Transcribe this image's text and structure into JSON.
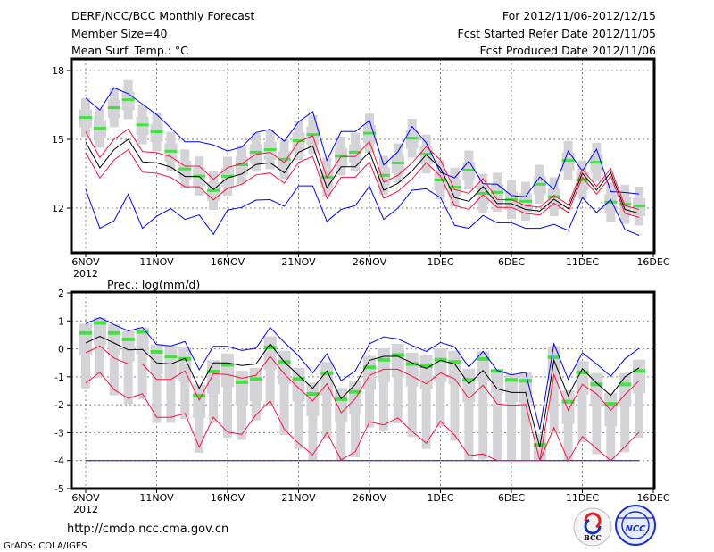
{
  "header": {
    "title": "DERF/NCC/BCC Monthly Forecast",
    "member_size": "Member Size=40",
    "variable": "Mean Surf. Temp.: °C",
    "period": "For 2012/11/06-2012/12/15",
    "started": "Fcst Started Refer Date 2012/11/05",
    "produced": "Fcst Produced Date 2012/11/06"
  },
  "footer": {
    "url": "http://cmdp.ncc.cma.gov.cn",
    "credit": "GrADS: COLA/IGES",
    "logo_bcc": "BCC",
    "logo_ncc": "NCC"
  },
  "colors": {
    "max_min": "#0000ff",
    "spread": "#ff1040",
    "mean": "#000000",
    "median": "#44e044",
    "box": "#d4d4d8",
    "grid": "#808080"
  },
  "chart_data": [
    {
      "type": "line",
      "title": "Mean Surf. Temp.: °C",
      "xlabel": "",
      "ylabel": "",
      "x_start_label": "6NOV",
      "year_label": "2012",
      "x_ticks": [
        {
          "day": 0,
          "label": "6NOV"
        },
        {
          "day": 5,
          "label": "11NOV"
        },
        {
          "day": 10,
          "label": "16NOV"
        },
        {
          "day": 15,
          "label": "21NOV"
        },
        {
          "day": 20,
          "label": "26NOV"
        },
        {
          "day": 25,
          "label": "1DEC"
        },
        {
          "day": 30,
          "label": "6DEC"
        },
        {
          "day": 35,
          "label": "11DEC"
        },
        {
          "day": 40,
          "label": "16DEC"
        }
      ],
      "y_ticks": [
        {
          "value": 18,
          "label": "18"
        },
        {
          "value": 15,
          "label": "15"
        },
        {
          "value": 12,
          "label": "12"
        }
      ],
      "ylim": [
        10.05,
        18.5
      ],
      "grid": true,
      "series": [
        {
          "name": "ensemble max",
          "color": "#0000ff",
          "values": [
            16.8,
            16.28,
            17.25,
            16.99,
            16.54,
            16.08,
            15.5,
            14.89,
            14.89,
            14.76,
            14.49,
            14.66,
            15.3,
            15.44,
            14.92,
            15.76,
            16.21,
            14.08,
            15.34,
            15.34,
            15.82,
            13.88,
            14.46,
            15.56,
            14.85,
            13.56,
            13.32,
            14.05,
            13.06,
            13.04,
            12.55,
            12.5,
            13.36,
            12.82,
            14.49,
            13.62,
            14.57,
            12.72,
            12.68,
            12.62
          ]
        },
        {
          "name": "ensemble min",
          "color": "#0000ff",
          "values": [
            12.82,
            11.12,
            11.45,
            12.61,
            11.12,
            11.64,
            11.98,
            11.51,
            11.7,
            10.86,
            11.92,
            12.03,
            12.35,
            12.37,
            12.08,
            12.97,
            12.97,
            11.42,
            11.94,
            12.11,
            12.95,
            11.51,
            12.0,
            12.78,
            12.84,
            12.46,
            11.25,
            11.12,
            11.68,
            11.36,
            11.36,
            11.12,
            11.12,
            11.29,
            11.03,
            12.46,
            11.81,
            12.37,
            11.07,
            10.81
          ]
        },
        {
          "name": "upper spread",
          "color": "#ff1040",
          "values": [
            15.33,
            14.21,
            15.0,
            15.45,
            14.47,
            14.42,
            14.24,
            13.83,
            13.83,
            13.26,
            13.77,
            13.94,
            14.35,
            14.43,
            13.99,
            14.89,
            15.16,
            13.33,
            14.25,
            14.25,
            14.91,
            13.13,
            13.43,
            13.97,
            14.68,
            14.1,
            12.81,
            12.65,
            13.29,
            12.37,
            12.37,
            12.11,
            12.04,
            12.56,
            12.15,
            13.69,
            12.95,
            13.73,
            12.11,
            11.94
          ]
        },
        {
          "name": "lower spread",
          "color": "#ff1040",
          "values": [
            14.43,
            13.31,
            14.1,
            14.55,
            13.57,
            13.52,
            13.34,
            12.93,
            12.93,
            12.36,
            12.87,
            13.04,
            13.45,
            13.53,
            13.09,
            13.99,
            14.26,
            12.43,
            13.35,
            13.35,
            14.01,
            12.43,
            12.73,
            13.27,
            13.98,
            13.4,
            12.11,
            11.95,
            12.59,
            12.03,
            12.03,
            11.77,
            11.7,
            12.22,
            11.81,
            13.35,
            12.61,
            13.39,
            11.77,
            11.6
          ]
        },
        {
          "name": "ensemble mean",
          "color": "#000000",
          "values": [
            14.88,
            13.76,
            14.55,
            15.0,
            14.02,
            13.97,
            13.79,
            13.38,
            13.38,
            12.81,
            13.32,
            13.49,
            13.9,
            13.98,
            13.54,
            14.44,
            14.71,
            12.88,
            13.8,
            13.8,
            14.46,
            12.78,
            13.08,
            13.62,
            14.33,
            13.75,
            12.46,
            12.3,
            12.94,
            12.2,
            12.2,
            11.94,
            11.87,
            12.39,
            11.98,
            13.52,
            12.78,
            13.56,
            11.94,
            11.77
          ]
        }
      ],
      "markers": {
        "name": "median",
        "color": "#44e044",
        "values": [
          15.95,
          15.49,
          16.38,
          16.73,
          15.63,
          15.33,
          14.48,
          13.71,
          13.4,
          12.77,
          13.39,
          13.89,
          14.44,
          14.55,
          14.13,
          14.94,
          15.21,
          13.35,
          14.27,
          14.44,
          15.27,
          13.43,
          13.97,
          15.05,
          14.36,
          13.23,
          12.91,
          13.66,
          12.65,
          12.69,
          12.37,
          12.3,
          13.04,
          12.5,
          14.08,
          13.23,
          14.0,
          12.26,
          12.17,
          12.09
        ]
      }
    },
    {
      "type": "line",
      "title": "Prec.: log(mm/d)",
      "xlabel": "",
      "ylabel": "",
      "year_label": "2012",
      "x_ticks": [
        {
          "day": 0,
          "label": "6NOV"
        },
        {
          "day": 5,
          "label": "11NOV"
        },
        {
          "day": 10,
          "label": "16NOV"
        },
        {
          "day": 15,
          "label": "21NOV"
        },
        {
          "day": 20,
          "label": "26NOV"
        },
        {
          "day": 25,
          "label": "1DEC"
        },
        {
          "day": 30,
          "label": "6DEC"
        },
        {
          "day": 35,
          "label": "11DEC"
        },
        {
          "day": 40,
          "label": "16DEC"
        }
      ],
      "y_ticks": [
        {
          "value": 2,
          "label": "2"
        },
        {
          "value": 1,
          "label": "1"
        },
        {
          "value": 0,
          "label": "0"
        },
        {
          "value": -1,
          "label": "-1"
        },
        {
          "value": -2,
          "label": "-2"
        },
        {
          "value": -3,
          "label": "-3"
        },
        {
          "value": -4,
          "label": "-4"
        },
        {
          "value": -5,
          "label": "-5"
        }
      ],
      "ylim": [
        -5,
        2
      ],
      "grid": true,
      "series": [
        {
          "name": "ensemble max",
          "color": "#0000ff",
          "values": [
            0.9,
            1.12,
            0.87,
            0.64,
            0.77,
            0.16,
            0.1,
            0.26,
            -0.75,
            0.09,
            0.09,
            -0.06,
            0.02,
            0.77,
            0.23,
            -0.25,
            -0.86,
            -0.18,
            -1.14,
            -0.79,
            0.18,
            0.43,
            0.36,
            0.12,
            -0.09,
            0.23,
            0.07,
            -0.65,
            -0.09,
            -0.77,
            -0.93,
            -0.84,
            -2.88,
            0.18,
            -1.09,
            -0.14,
            -0.54,
            -0.98,
            -0.36,
            0.02
          ]
        },
        {
          "name": "ensemble min",
          "color": "#0000ff",
          "values": [
            -4,
            -4,
            -4,
            -4,
            -4,
            -4,
            -4,
            -4,
            -4,
            -4,
            -4,
            -4,
            -4,
            -4,
            -4,
            -4,
            -4,
            -4,
            -4,
            -4,
            -4,
            -4,
            -4,
            -4,
            -4,
            -4,
            -4,
            -4,
            -4,
            -4,
            -4,
            -4,
            -4,
            -4,
            -4,
            -4,
            -4,
            -4,
            -4,
            -4
          ]
        },
        {
          "name": "upper spread",
          "color": "#ff1040",
          "values": [
            -0.14,
            0.1,
            -0.33,
            -0.54,
            -0.54,
            -1.09,
            -1.09,
            -0.79,
            -1.83,
            -0.89,
            -0.92,
            -1.05,
            -0.95,
            -0.27,
            -0.9,
            -1.4,
            -1.86,
            -1.25,
            -2.29,
            -1.78,
            -0.95,
            -0.73,
            -0.73,
            -0.98,
            -1.25,
            -0.86,
            -1.07,
            -1.78,
            -1.3,
            -1.97,
            -2.02,
            -1.99,
            -4.0,
            -0.92,
            -2.2,
            -1.27,
            -1.61,
            -2.2,
            -1.64,
            -1.14
          ]
        },
        {
          "name": "lower spread",
          "color": "#ff1040",
          "values": [
            -1.22,
            -0.84,
            -1.46,
            -1.77,
            -1.61,
            -2.45,
            -2.45,
            -2.31,
            -3.52,
            -2.45,
            -2.98,
            -3.06,
            -2.36,
            -1.86,
            -2.88,
            -3.38,
            -3.79,
            -3.0,
            -3.97,
            -3.68,
            -2.61,
            -2.72,
            -2.47,
            -2.95,
            -3.38,
            -2.59,
            -3.09,
            -3.82,
            -3.76,
            -4,
            -4,
            -4,
            -4,
            -2.82,
            -4,
            -3.14,
            -3.57,
            -4,
            -3.5,
            -2.98
          ]
        },
        {
          "name": "ensemble mean",
          "color": "#000000",
          "values": [
            0.21,
            0.45,
            0.21,
            -0.04,
            -0.02,
            -0.5,
            -0.54,
            -0.34,
            -1.41,
            -0.5,
            -0.5,
            -0.6,
            -0.54,
            0.18,
            -0.47,
            -0.95,
            -1.41,
            -0.79,
            -1.78,
            -1.27,
            -0.41,
            -0.27,
            -0.27,
            -0.5,
            -0.7,
            -0.41,
            -0.54,
            -1.25,
            -0.77,
            -1.43,
            -1.56,
            -1.56,
            -3.52,
            -0.41,
            -1.68,
            -0.71,
            -1.22,
            -1.67,
            -1.0,
            -0.68
          ]
        }
      ],
      "markers": {
        "name": "median",
        "color": "#44e044",
        "values": [
          0.57,
          0.93,
          0.57,
          0.34,
          0.61,
          -0.11,
          -0.27,
          -0.36,
          -1.68,
          -0.81,
          -0.57,
          -1.19,
          -1.08,
          0.05,
          -0.47,
          -1.08,
          -1.61,
          -0.87,
          -1.8,
          -1.54,
          -0.66,
          -0.39,
          -0.22,
          -0.54,
          -0.62,
          -0.39,
          -0.47,
          -1.11,
          -0.36,
          -0.79,
          -1.11,
          -1.14,
          -3.44,
          -0.3,
          -1.89,
          -0.84,
          -1.27,
          -1.97,
          -1.27,
          -0.79
        ]
      }
    }
  ]
}
